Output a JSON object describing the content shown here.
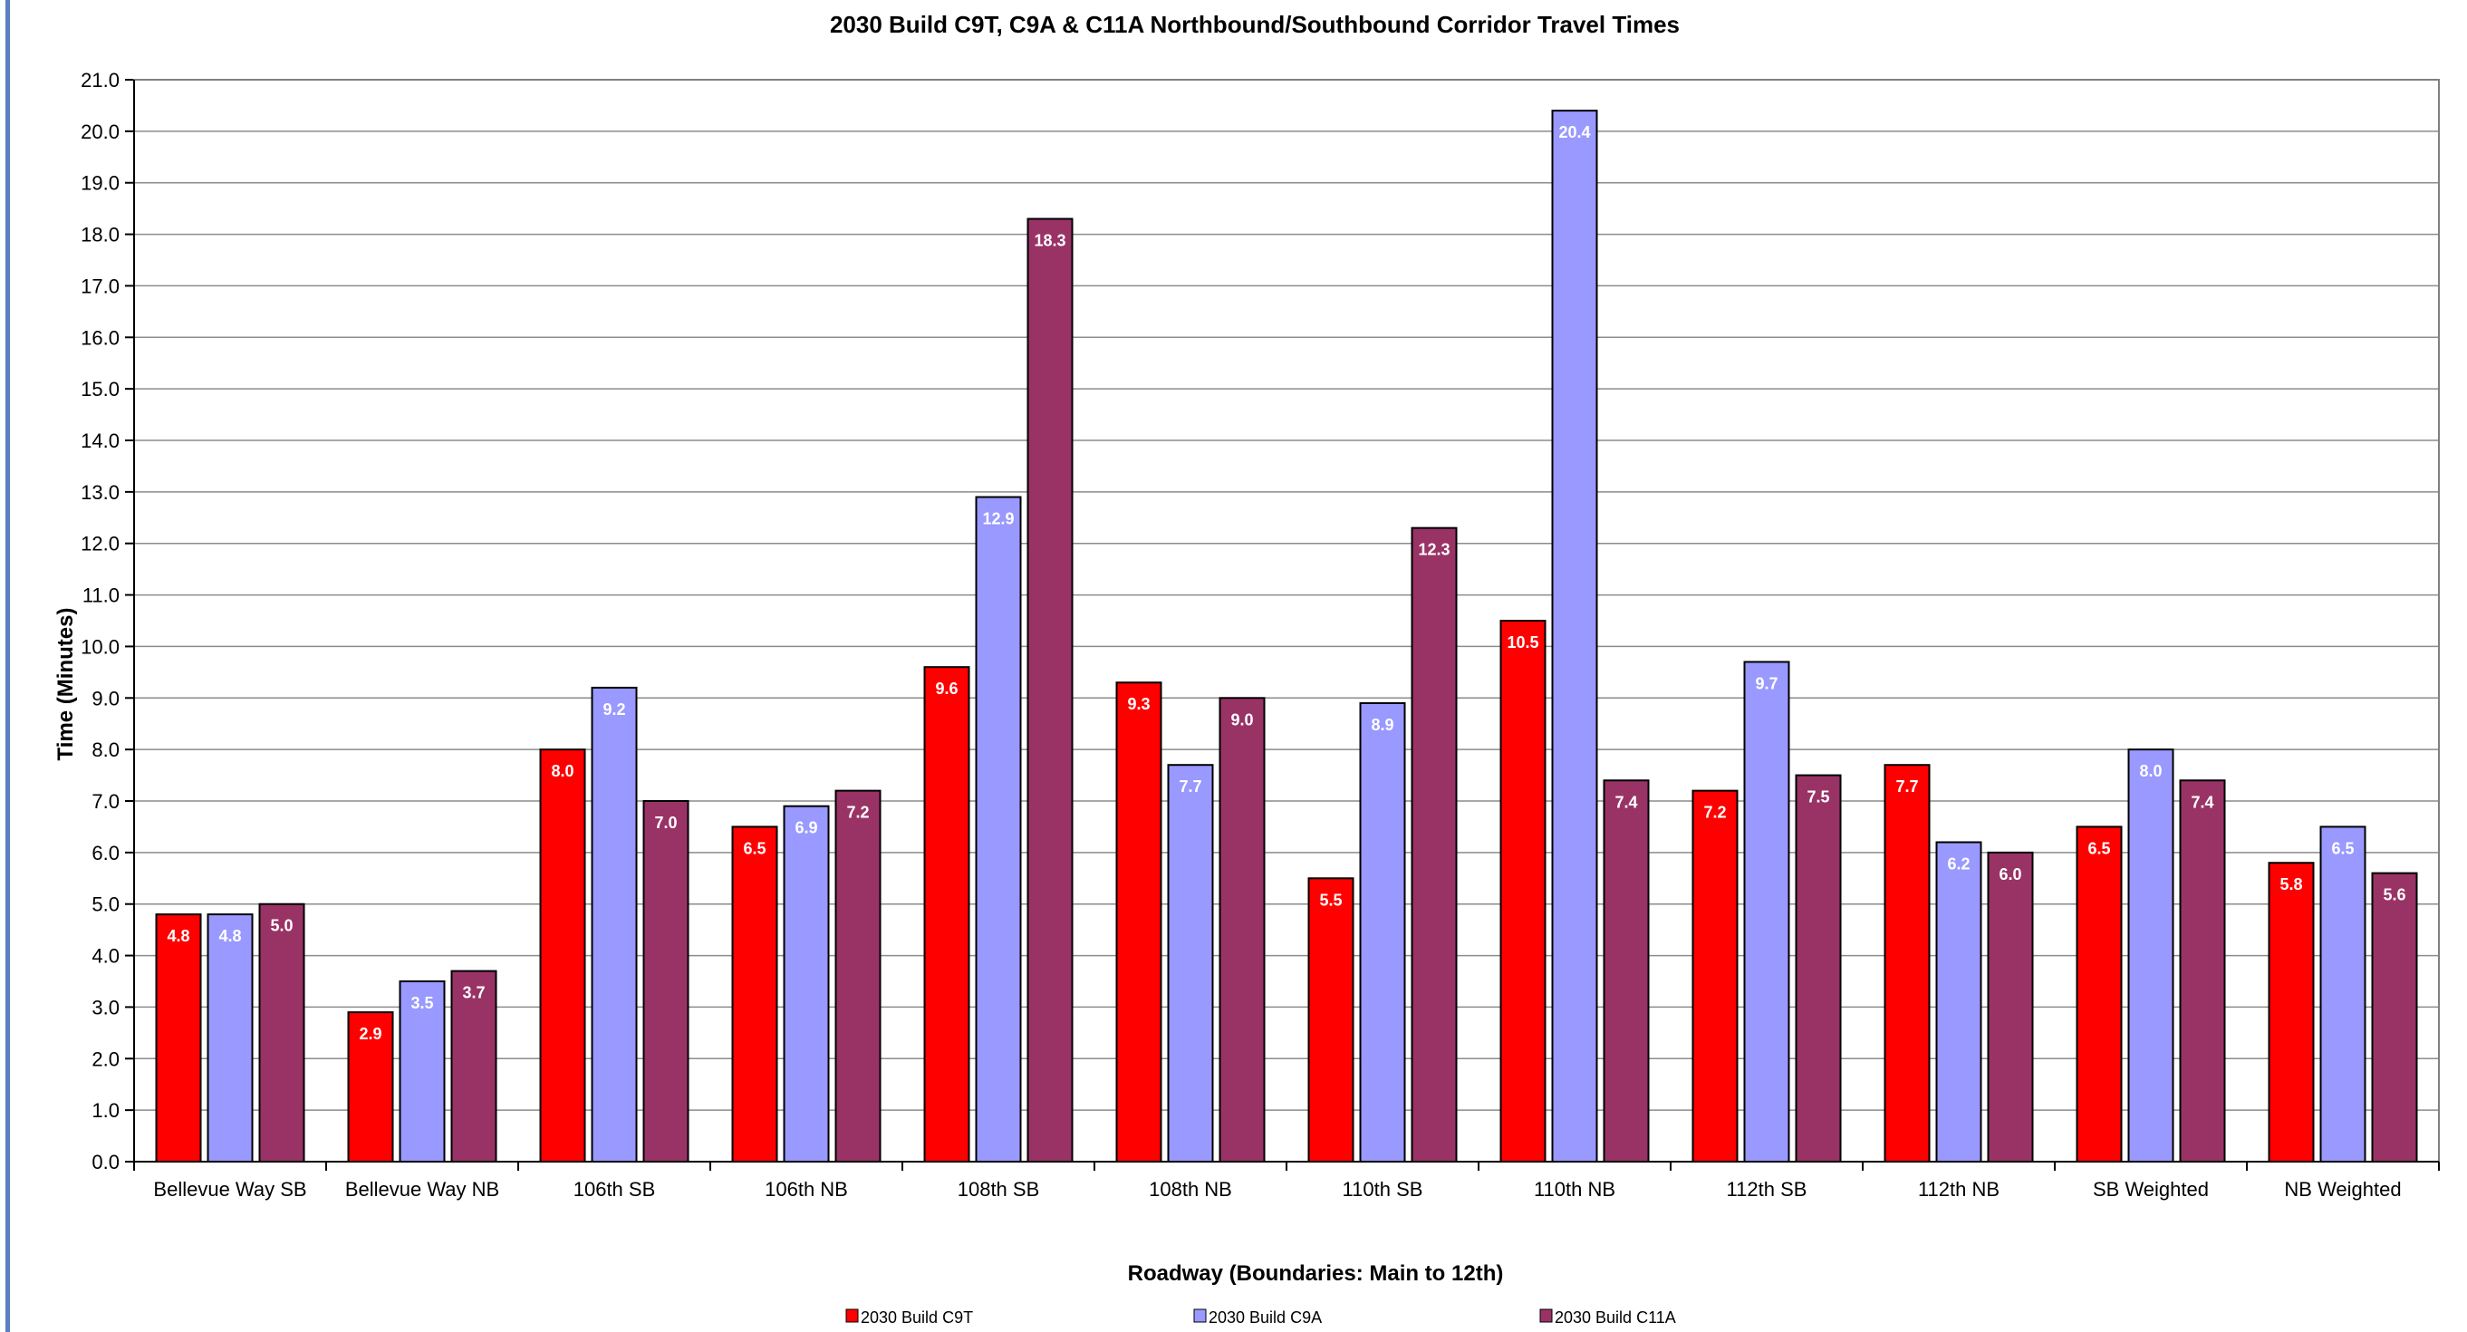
{
  "chart_data": {
    "type": "bar",
    "title": "2030 Build C9T, C9A & C11A Northbound/Southbound Corridor Travel Times",
    "xlabel": "Roadway (Boundaries: Main to 12th)",
    "ylabel": "Time (Minutes)",
    "ylim": [
      0,
      21
    ],
    "y_tick_step": 1,
    "y_tick_format": "one decimal",
    "grid": true,
    "legend_position": "bottom",
    "categories": [
      "Bellevue Way SB",
      "Bellevue Way NB",
      "106th SB",
      "106th NB",
      "108th SB",
      "108th NB",
      "110th SB",
      "110th NB",
      "112th SB",
      "112th NB",
      "SB Weighted",
      "NB Weighted"
    ],
    "series": [
      {
        "name": "2030 Build C9T",
        "color": "#ff0000",
        "values": [
          4.8,
          2.9,
          8.0,
          6.5,
          9.6,
          9.3,
          5.5,
          10.5,
          7.2,
          7.7,
          6.5,
          5.8
        ]
      },
      {
        "name": "2030 Build C9A",
        "color": "#9999ff",
        "values": [
          4.8,
          3.5,
          9.2,
          6.9,
          12.9,
          7.7,
          8.9,
          20.4,
          9.7,
          6.2,
          8.0,
          6.5
        ]
      },
      {
        "name": "2030 Build C11A",
        "color": "#993366",
        "values": [
          5.0,
          3.7,
          7.0,
          7.2,
          18.3,
          9.0,
          12.3,
          7.4,
          7.5,
          6.0,
          7.4,
          5.6
        ]
      }
    ]
  }
}
